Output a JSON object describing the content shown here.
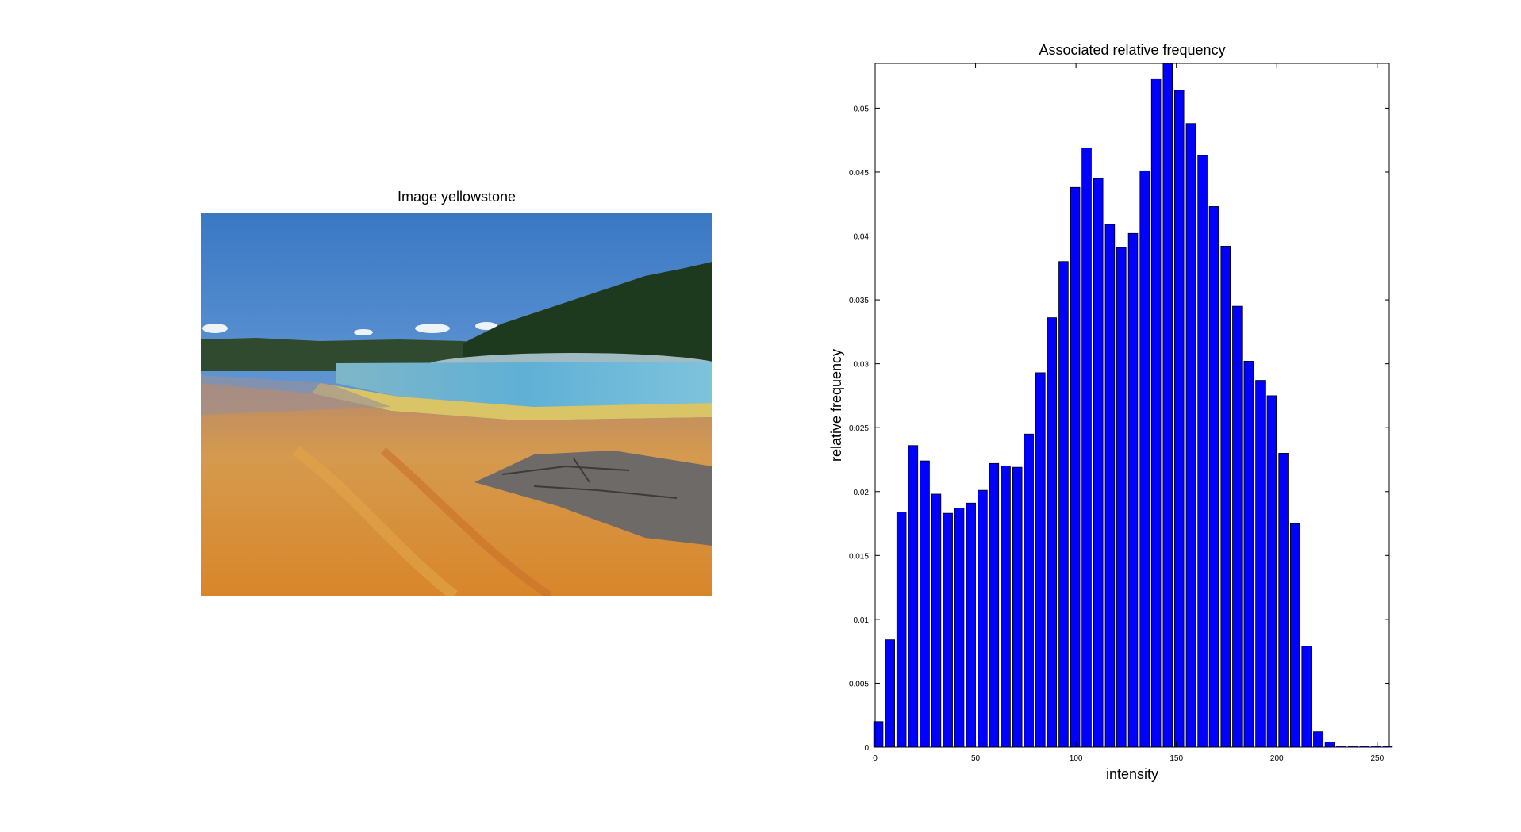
{
  "photo_panel": {
    "title": "Image yellowstone"
  },
  "colors": {
    "bar_fill": "#0000ff",
    "bar_edge": "#000000",
    "axis": "#000000",
    "background": "#ffffff"
  },
  "chart_data": {
    "type": "bar",
    "title": "Associated relative frequency",
    "xlabel": "intensity",
    "ylabel": "relative frequency",
    "xlim": [
      0,
      256
    ],
    "ylim": [
      0,
      0.0535
    ],
    "xticks": [
      0,
      50,
      100,
      150,
      200,
      250
    ],
    "xtick_labels": [
      "0",
      "50",
      "100",
      "150",
      "200",
      "250"
    ],
    "yticks": [
      0,
      0.005,
      0.01,
      0.015,
      0.02,
      0.025,
      0.03,
      0.035,
      0.04,
      0.045,
      0.05
    ],
    "ytick_labels": [
      "0",
      "0.005",
      "0.01",
      "0.015",
      "0.02",
      "0.025",
      "0.03",
      "0.035",
      "0.04",
      "0.045",
      "0.05"
    ],
    "grid": false,
    "bin_width": 5.8,
    "x": [
      1.6,
      7.4,
      13.1,
      18.9,
      24.7,
      30.4,
      36.2,
      41.9,
      47.7,
      53.5,
      59.2,
      65.0,
      70.8,
      76.5,
      82.3,
      88.0,
      93.8,
      99.6,
      105.3,
      111.1,
      116.9,
      122.6,
      128.4,
      134.2,
      139.9,
      145.7,
      151.4,
      157.2,
      163.0,
      168.7,
      174.5,
      180.3,
      186.0,
      191.8,
      197.5,
      203.3,
      209.1,
      214.8,
      220.6,
      226.4,
      232.1,
      237.9,
      243.7,
      249.4,
      255.2
    ],
    "values": [
      0.002,
      0.0084,
      0.0184,
      0.0236,
      0.0224,
      0.0198,
      0.0183,
      0.0187,
      0.0191,
      0.0201,
      0.0222,
      0.022,
      0.0219,
      0.0245,
      0.0293,
      0.0336,
      0.038,
      0.0438,
      0.0469,
      0.0445,
      0.0409,
      0.0391,
      0.0402,
      0.0451,
      0.0523,
      0.0535,
      0.0514,
      0.0488,
      0.0463,
      0.0423,
      0.0392,
      0.0345,
      0.0302,
      0.0287,
      0.0275,
      0.023,
      0.0175,
      0.0079,
      0.0012,
      0.0004,
      0.0001,
      0.0001,
      0.0001,
      0.0001,
      0.0001
    ]
  }
}
